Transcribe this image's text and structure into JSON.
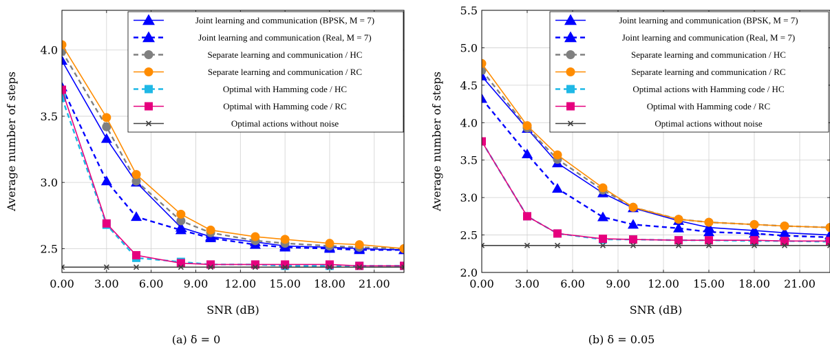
{
  "chart_data": [
    {
      "type": "line",
      "caption": "(a) δ = 0",
      "xlabel": "SNR (dB)",
      "ylabel": "Average number of steps",
      "xlim": [
        0,
        23
      ],
      "ylim": [
        2.32,
        4.3
      ],
      "xticks": [
        "0.00",
        "3.00",
        "6.00",
        "9.00",
        "12.00",
        "15.00",
        "18.00",
        "21.00"
      ],
      "xtick_values": [
        0,
        3,
        6,
        9,
        12,
        15,
        18,
        21
      ],
      "yticks": [
        "2.5",
        "3.0",
        "3.5",
        "4.0"
      ],
      "ytick_values": [
        2.5,
        3.0,
        3.5,
        4.0
      ],
      "grid": true,
      "legend_position": "top-right",
      "x": [
        0,
        3,
        5,
        8,
        10,
        13,
        15,
        18,
        20,
        23
      ],
      "series": [
        {
          "name": "Joint learning and communication (BPSK, M = 7)",
          "color": "#0000ff",
          "dash": "solid",
          "marker": "triangle",
          "values": [
            3.92,
            3.33,
            3.0,
            2.66,
            2.59,
            2.55,
            2.52,
            2.51,
            2.5,
            2.49
          ]
        },
        {
          "name": "Joint learning and communication (Real, M = 7)",
          "color": "#0000ff",
          "dash": "dashed",
          "marker": "triangle",
          "values": [
            3.72,
            3.01,
            2.74,
            2.64,
            2.58,
            2.53,
            2.51,
            2.5,
            2.49,
            2.49
          ]
        },
        {
          "name": "Separate learning and communication / HC",
          "color": "#808080",
          "dash": "dashed",
          "marker": "circle",
          "values": [
            3.99,
            3.42,
            3.01,
            2.71,
            2.62,
            2.56,
            2.54,
            2.52,
            2.51,
            2.5
          ]
        },
        {
          "name": "Separate learning and communication / RC",
          "color": "#ff8c00",
          "dash": "solid",
          "marker": "circle",
          "values": [
            4.04,
            3.49,
            3.06,
            2.76,
            2.64,
            2.59,
            2.57,
            2.54,
            2.53,
            2.5
          ]
        },
        {
          "name": "Optimal with Hamming code / HC",
          "color": "#1fb8e6",
          "dash": "dashed",
          "marker": "square",
          "values": [
            3.64,
            2.68,
            2.43,
            2.4,
            2.38,
            2.38,
            2.37,
            2.37,
            2.37,
            2.37
          ]
        },
        {
          "name": "Optimal with Hamming code / RC",
          "color": "#e6007e",
          "dash": "solid",
          "marker": "square",
          "values": [
            3.7,
            2.69,
            2.45,
            2.39,
            2.38,
            2.38,
            2.38,
            2.38,
            2.37,
            2.37
          ]
        },
        {
          "name": "Optimal actions without noise",
          "color": "#404040",
          "dash": "solid",
          "marker": "x",
          "values": [
            2.36,
            2.36,
            2.36,
            2.36,
            2.36,
            2.36,
            2.36,
            2.36,
            2.36,
            2.36
          ]
        }
      ]
    },
    {
      "type": "line",
      "caption": "(b) δ = 0.05",
      "xlabel": "SNR (dB)",
      "ylabel": "Average number of steps",
      "xlim": [
        0,
        23
      ],
      "ylim": [
        2.0,
        5.5
      ],
      "xticks": [
        "0.00",
        "3.00",
        "6.00",
        "9.00",
        "12.00",
        "15.00",
        "18.00",
        "21.00"
      ],
      "xtick_values": [
        0,
        3,
        6,
        9,
        12,
        15,
        18,
        21
      ],
      "yticks": [
        "2.0",
        "2.5",
        "3.0",
        "3.5",
        "4.0",
        "4.5",
        "5.0",
        "5.5"
      ],
      "ytick_values": [
        2.0,
        2.5,
        3.0,
        3.5,
        4.0,
        4.5,
        5.0,
        5.5
      ],
      "grid": true,
      "legend_position": "top-right",
      "x": [
        0,
        3,
        5,
        8,
        10,
        13,
        15,
        18,
        20,
        23
      ],
      "series": [
        {
          "name": "Joint learning and communication (BPSK, M = 7)",
          "color": "#0000ff",
          "dash": "solid",
          "marker": "triangle",
          "values": [
            4.62,
            3.92,
            3.46,
            3.06,
            2.86,
            2.69,
            2.6,
            2.56,
            2.53,
            2.5
          ]
        },
        {
          "name": "Joint learning and communication (Real, M = 7)",
          "color": "#0000ff",
          "dash": "dashed",
          "marker": "triangle",
          "values": [
            4.32,
            3.58,
            3.12,
            2.74,
            2.64,
            2.59,
            2.54,
            2.52,
            2.49,
            2.47
          ]
        },
        {
          "name": "Separate learning and communication / HC",
          "color": "#808080",
          "dash": "dashed",
          "marker": "circle",
          "values": [
            4.7,
            3.93,
            3.51,
            3.1,
            2.87,
            2.71,
            2.67,
            2.64,
            2.62,
            2.6
          ]
        },
        {
          "name": "Separate learning and communication / RC",
          "color": "#ff8c00",
          "dash": "solid",
          "marker": "circle",
          "values": [
            4.79,
            3.96,
            3.57,
            3.13,
            2.87,
            2.71,
            2.67,
            2.64,
            2.62,
            2.6
          ]
        },
        {
          "name": "Optimal actions with Hamming code / HC",
          "color": "#1fb8e6",
          "dash": "dashed",
          "marker": "square",
          "values": [
            3.75,
            2.75,
            2.52,
            2.44,
            2.44,
            2.43,
            2.43,
            2.42,
            2.42,
            2.41
          ]
        },
        {
          "name": "Optimal with Hamming code / RC",
          "color": "#e6007e",
          "dash": "solid",
          "marker": "square",
          "values": [
            3.75,
            2.75,
            2.52,
            2.45,
            2.44,
            2.43,
            2.43,
            2.43,
            2.42,
            2.42
          ]
        },
        {
          "name": "Optimal actions without noise",
          "color": "#404040",
          "dash": "solid",
          "marker": "x",
          "values": [
            2.36,
            2.36,
            2.36,
            2.36,
            2.36,
            2.36,
            2.36,
            2.36,
            2.36,
            2.36
          ]
        }
      ]
    }
  ]
}
